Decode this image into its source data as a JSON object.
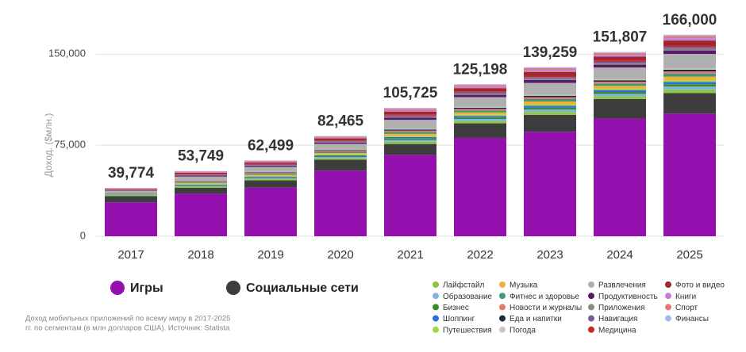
{
  "chart_data": {
    "type": "stacked_bar",
    "ylabel": "Доход. ($млн.)",
    "note": [
      "Доход мобильных приложений по всему миру в 2017-2025",
      "гг. по сегментам (в млн долларов США). Источник: Statista"
    ],
    "categories": [
      "2017",
      "2018",
      "2019",
      "2020",
      "2021",
      "2022",
      "2023",
      "2024",
      "2025"
    ],
    "totals": [
      39774,
      53749,
      62499,
      82465,
      105725,
      125198,
      139259,
      151807,
      166000
    ],
    "total_labels": [
      "39,774",
      "53,749",
      "62,499",
      "82,465",
      "105,725",
      "125,198",
      "139,259",
      "151,807",
      "166,000"
    ],
    "ylim": [
      0,
      175000
    ],
    "yticks": [
      0,
      {
        "value": 75000,
        "label": "75,000"
      },
      {
        "value": 150000,
        "label": "150,000"
      }
    ],
    "grid": true,
    "series": [
      {
        "name": "Игры",
        "color": "#9411b0",
        "values": [
          28000,
          35000,
          40000,
          54000,
          67000,
          81000,
          86000,
          97000,
          101000
        ]
      },
      {
        "name": "Социальные сети",
        "color": "#3d3d3d",
        "values": [
          5000,
          5000,
          6000,
          9000,
          9000,
          12000,
          14000,
          16000,
          17000
        ]
      },
      {
        "name": "Лайфстайл",
        "color": "#8dc63f",
        "values": [
          410,
          820,
          990,
          1170,
          1780,
          1930,
          2360,
          2330,
          2880
        ]
      },
      {
        "name": "Образование",
        "color": "#7fb2e5",
        "values": [
          340,
          690,
          830,
          980,
          1490,
          1610,
          1970,
          1940,
          2400
        ]
      },
      {
        "name": "Бизнес",
        "color": "#3a8a2a",
        "values": [
          270,
          550,
          660,
          780,
          1190,
          1290,
          1570,
          1550,
          1920
        ]
      },
      {
        "name": "Шоппинг",
        "color": "#2f6fd6",
        "values": [
          270,
          550,
          660,
          780,
          1190,
          1290,
          1570,
          1550,
          1920
        ]
      },
      {
        "name": "Путешествия",
        "color": "#a0d64a",
        "values": [
          200,
          410,
          500,
          590,
          890,
          970,
          1180,
          1160,
          1440
        ]
      },
      {
        "name": "Музыка",
        "color": "#f2b134",
        "values": [
          410,
          820,
          990,
          1170,
          1780,
          1930,
          2360,
          2330,
          2880
        ]
      },
      {
        "name": "Фитнес и здоровье",
        "color": "#3c9a7a",
        "values": [
          340,
          690,
          830,
          980,
          1490,
          1610,
          1970,
          1940,
          2400
        ]
      },
      {
        "name": "Новости и журналы",
        "color": "#e07a6a",
        "values": [
          270,
          550,
          660,
          780,
          1190,
          1290,
          1570,
          1550,
          1920
        ]
      },
      {
        "name": "Еда и напитки",
        "color": "#1a2a3a",
        "values": [
          200,
          410,
          500,
          590,
          890,
          970,
          1180,
          1160,
          1440
        ]
      },
      {
        "name": "Погода",
        "color": "#c8c8c8",
        "values": [
          140,
          270,
          330,
          390,
          590,
          640,
          790,
          780,
          960
        ]
      },
      {
        "name": "Развлечения",
        "color": "#b0b0b0",
        "values": [
          1700,
          3400,
          4100,
          4900,
          7400,
          8050,
          9800,
          9700,
          12000
        ]
      },
      {
        "name": "Продуктивность",
        "color": "#5a1a6a",
        "values": [
          410,
          820,
          990,
          1170,
          1780,
          1930,
          2360,
          2330,
          2880
        ]
      },
      {
        "name": "Приложения",
        "color": "#8a8a8a",
        "values": [
          200,
          410,
          500,
          590,
          890,
          970,
          1180,
          1160,
          1440
        ]
      },
      {
        "name": "Навигация",
        "color": "#7a5a9a",
        "values": [
          200,
          410,
          500,
          590,
          890,
          970,
          1180,
          1160,
          1440
        ]
      },
      {
        "name": "Медицина",
        "color": "#c0282a",
        "values": [
          200,
          410,
          500,
          590,
          890,
          970,
          1180,
          1160,
          1440
        ]
      },
      {
        "name": "Фото и видео",
        "color": "#a0282a",
        "values": [
          540,
          1100,
          1320,
          1560,
          2380,
          2580,
          3140,
          3100,
          3840
        ]
      },
      {
        "name": "Книги",
        "color": "#c77dd9",
        "values": [
          270,
          550,
          660,
          780,
          1190,
          1290,
          1570,
          1550,
          1920
        ]
      },
      {
        "name": "Спорт",
        "color": "#e07a7a",
        "values": [
          270,
          550,
          660,
          780,
          1190,
          1290,
          1570,
          1550,
          1920
        ]
      },
      {
        "name": "Финансы",
        "color": "#a9b8e8",
        "values": [
          140,
          270,
          330,
          390,
          590,
          640,
          790,
          780,
          960
        ]
      }
    ]
  }
}
